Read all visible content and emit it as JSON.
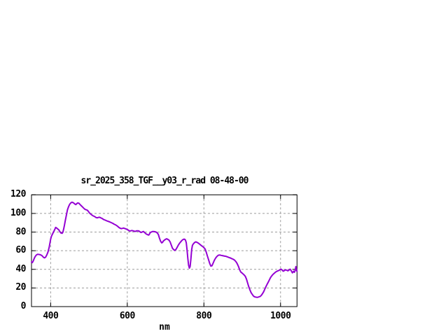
{
  "window": {
    "background": "#ffffff"
  },
  "chart_data": {
    "type": "line",
    "title": "sr_2025_358_TGF__y03_r_rad 08-48-00",
    "xlabel": "nm",
    "ylabel": "",
    "xlim": [
      350,
      1043
    ],
    "ylim": [
      0,
      120
    ],
    "x_ticks": [
      400,
      600,
      800,
      1000
    ],
    "y_ticks": [
      0,
      20,
      40,
      60,
      80,
      100,
      120
    ],
    "grid": true,
    "legend_position": "none",
    "colors": {
      "line": "#9400d3",
      "grid": "#9c9c9c",
      "frame": "#000000",
      "text": "#000000"
    },
    "series": [
      {
        "points": [
          [
            350,
            48
          ],
          [
            352,
            47.2
          ],
          [
            354,
            48.5
          ],
          [
            356,
            50.5
          ],
          [
            358,
            52.5
          ],
          [
            360,
            54
          ],
          [
            363,
            55.5
          ],
          [
            366,
            56.2
          ],
          [
            369,
            56
          ],
          [
            372,
            55.8
          ],
          [
            375,
            55.3
          ],
          [
            378,
            54.5
          ],
          [
            381,
            53
          ],
          [
            384,
            52.3
          ],
          [
            387,
            53.2
          ],
          [
            390,
            55.5
          ],
          [
            393,
            58.5
          ],
          [
            396,
            63.5
          ],
          [
            398,
            68
          ],
          [
            400,
            72.5
          ],
          [
            402,
            75.5
          ],
          [
            405,
            78
          ],
          [
            408,
            80.5
          ],
          [
            411,
            83
          ],
          [
            413,
            85
          ],
          [
            415,
            84.5
          ],
          [
            418,
            83.5
          ],
          [
            421,
            82.5
          ],
          [
            424,
            80.5
          ],
          [
            427,
            79
          ],
          [
            430,
            78.7
          ],
          [
            432,
            80
          ],
          [
            434,
            83.5
          ],
          [
            436,
            87.5
          ],
          [
            438,
            92
          ],
          [
            441,
            98
          ],
          [
            444,
            104
          ],
          [
            447,
            107.5
          ],
          [
            450,
            110
          ],
          [
            453,
            111.5
          ],
          [
            456,
            112
          ],
          [
            459,
            111.5
          ],
          [
            462,
            110.5
          ],
          [
            464,
            109.8
          ],
          [
            466,
            109.5
          ],
          [
            468,
            110.5
          ],
          [
            471,
            111.3
          ],
          [
            474,
            110.8
          ],
          [
            477,
            109.5
          ],
          [
            480,
            108.2
          ],
          [
            483,
            107
          ],
          [
            486,
            105.8
          ],
          [
            489,
            104.6
          ],
          [
            492,
            104
          ],
          [
            495,
            103.6
          ],
          [
            498,
            102.5
          ],
          [
            501,
            100.8
          ],
          [
            504,
            99.5
          ],
          [
            507,
            98.5
          ],
          [
            510,
            97.6
          ],
          [
            513,
            97
          ],
          [
            516,
            96.3
          ],
          [
            519,
            95.5
          ],
          [
            522,
            95.3
          ],
          [
            525,
            95.8
          ],
          [
            528,
            95.9
          ],
          [
            531,
            95.2
          ],
          [
            534,
            94.7
          ],
          [
            537,
            93.8
          ],
          [
            540,
            93.2
          ],
          [
            543,
            92.7
          ],
          [
            546,
            92.1
          ],
          [
            550,
            91.5
          ],
          [
            554,
            90.9
          ],
          [
            558,
            90.2
          ],
          [
            562,
            89.4
          ],
          [
            566,
            88.4
          ],
          [
            570,
            87.6
          ],
          [
            574,
            86.5
          ],
          [
            578,
            85
          ],
          [
            581,
            84.2
          ],
          [
            584,
            83.7
          ],
          [
            587,
            83.9
          ],
          [
            590,
            84.3
          ],
          [
            593,
            83.9
          ],
          [
            596,
            83.5
          ],
          [
            600,
            82.8
          ],
          [
            603,
            81.9
          ],
          [
            606,
            81.2
          ],
          [
            609,
            81.4
          ],
          [
            612,
            81.7
          ],
          [
            615,
            81.4
          ],
          [
            618,
            81
          ],
          [
            621,
            80.7
          ],
          [
            624,
            81.3
          ],
          [
            627,
            81.4
          ],
          [
            630,
            81.2
          ],
          [
            633,
            80.3
          ],
          [
            636,
            79.6
          ],
          [
            639,
            80.1
          ],
          [
            642,
            80.7
          ],
          [
            645,
            79.6
          ],
          [
            648,
            78.4
          ],
          [
            651,
            77.6
          ],
          [
            654,
            77
          ],
          [
            656,
            76.8
          ],
          [
            658,
            78
          ],
          [
            660,
            79.4
          ],
          [
            663,
            80.1
          ],
          [
            666,
            80.6
          ],
          [
            669,
            80.6
          ],
          [
            672,
            80.4
          ],
          [
            675,
            80
          ],
          [
            678,
            79.2
          ],
          [
            681,
            77.5
          ],
          [
            684,
            73.5
          ],
          [
            687,
            70
          ],
          [
            690,
            68.4
          ],
          [
            692,
            69
          ],
          [
            694,
            70.3
          ],
          [
            697,
            71.4
          ],
          [
            700,
            72.3
          ],
          [
            703,
            72.8
          ],
          [
            706,
            72.1
          ],
          [
            709,
            71.3
          ],
          [
            712,
            69.3
          ],
          [
            715,
            65.9
          ],
          [
            718,
            62.6
          ],
          [
            721,
            61.2
          ],
          [
            724,
            60.3
          ],
          [
            727,
            61.3
          ],
          [
            730,
            63.5
          ],
          [
            733,
            65.8
          ],
          [
            736,
            67.8
          ],
          [
            739,
            69.3
          ],
          [
            742,
            70.8
          ],
          [
            745,
            71.8
          ],
          [
            748,
            72.4
          ],
          [
            750,
            72.2
          ],
          [
            752,
            71.3
          ],
          [
            754,
            68.5
          ],
          [
            756,
            61
          ],
          [
            758,
            52
          ],
          [
            760,
            44.5
          ],
          [
            762,
            41.3
          ],
          [
            764,
            43
          ],
          [
            766,
            51
          ],
          [
            768,
            61
          ],
          [
            770,
            65.8
          ],
          [
            773,
            67.6
          ],
          [
            776,
            68.9
          ],
          [
            779,
            69.5
          ],
          [
            782,
            69
          ],
          [
            785,
            68.3
          ],
          [
            788,
            67.3
          ],
          [
            791,
            66.3
          ],
          [
            794,
            65.3
          ],
          [
            797,
            64.4
          ],
          [
            800,
            63.3
          ],
          [
            803,
            62
          ],
          [
            806,
            58.5
          ],
          [
            809,
            54.5
          ],
          [
            812,
            50.5
          ],
          [
            815,
            46.5
          ],
          [
            818,
            43.5
          ],
          [
            821,
            43.8
          ],
          [
            824,
            46.5
          ],
          [
            827,
            49.5
          ],
          [
            830,
            51.7
          ],
          [
            833,
            53.4
          ],
          [
            836,
            54.6
          ],
          [
            839,
            55.3
          ],
          [
            842,
            55.3
          ],
          [
            845,
            55
          ],
          [
            848,
            54.8
          ],
          [
            851,
            54.5
          ],
          [
            854,
            54.2
          ],
          [
            857,
            54
          ],
          [
            860,
            53.6
          ],
          [
            863,
            53.1
          ],
          [
            866,
            52.6
          ],
          [
            869,
            52.2
          ],
          [
            872,
            51.6
          ],
          [
            875,
            51.1
          ],
          [
            878,
            50.5
          ],
          [
            881,
            49.5
          ],
          [
            884,
            48
          ],
          [
            887,
            46
          ],
          [
            890,
            43.2
          ],
          [
            893,
            40
          ],
          [
            896,
            37.3
          ],
          [
            899,
            36.2
          ],
          [
            902,
            35.2
          ],
          [
            905,
            34
          ],
          [
            908,
            32.5
          ],
          [
            911,
            29.5
          ],
          [
            914,
            25.5
          ],
          [
            917,
            21.5
          ],
          [
            920,
            18
          ],
          [
            923,
            15.2
          ],
          [
            926,
            13.2
          ],
          [
            929,
            11.5
          ],
          [
            932,
            10.6
          ],
          [
            935,
            10.2
          ],
          [
            938,
            10
          ],
          [
            941,
            10.1
          ],
          [
            944,
            10.5
          ],
          [
            947,
            11
          ],
          [
            950,
            12.2
          ],
          [
            953,
            13.9
          ],
          [
            956,
            16
          ],
          [
            959,
            18.8
          ],
          [
            962,
            21.6
          ],
          [
            965,
            24
          ],
          [
            968,
            26.4
          ],
          [
            971,
            28.8
          ],
          [
            974,
            31.2
          ],
          [
            977,
            33
          ],
          [
            980,
            34.4
          ],
          [
            983,
            35.6
          ],
          [
            986,
            36.7
          ],
          [
            989,
            37.6
          ],
          [
            992,
            38.2
          ],
          [
            995,
            38.7
          ],
          [
            998,
            39.4
          ],
          [
            1001,
            40.2
          ],
          [
            1004,
            39.4
          ],
          [
            1007,
            38
          ],
          [
            1010,
            38.6
          ],
          [
            1013,
            39.5
          ],
          [
            1016,
            39.1
          ],
          [
            1019,
            38.4
          ],
          [
            1022,
            39.2
          ],
          [
            1025,
            40.2
          ],
          [
            1028,
            38.5
          ],
          [
            1031,
            36.2
          ],
          [
            1034,
            38
          ],
          [
            1036,
            36.8
          ],
          [
            1038,
            38.8
          ],
          [
            1040,
            43
          ],
          [
            1042,
            38.5
          ],
          [
            1043,
            37.8
          ]
        ]
      }
    ]
  }
}
